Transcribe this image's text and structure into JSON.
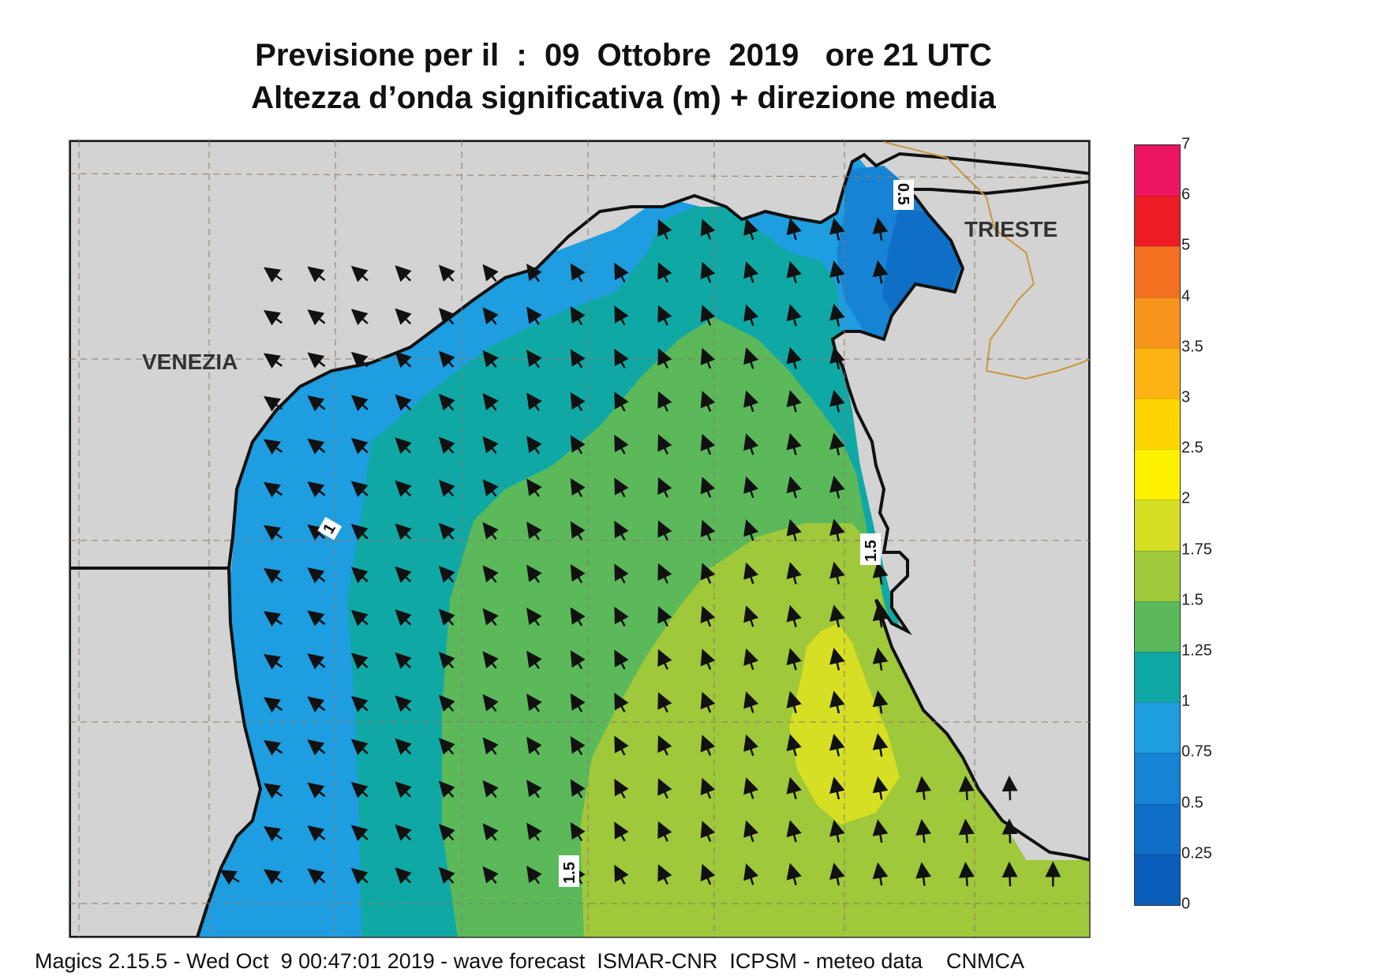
{
  "title": {
    "line1": "Previsione per il  :  09  Ottobre  2019   ore 21 UTC",
    "line2": "Altezza d’onda significativa (m) + direzione media"
  },
  "map": {
    "cities": [
      {
        "name": "VENEZIA"
      },
      {
        "name": "TRIESTE"
      }
    ],
    "contour_labels": [
      "0.5",
      "1",
      "1.5",
      "1.5"
    ],
    "arrow_direction": "north-west to north (toward coast)"
  },
  "legend": {
    "levels": [
      {
        "label": "0",
        "color": "#0a5db8"
      },
      {
        "label": "0.25",
        "color": "#0f6fc6"
      },
      {
        "label": "0.5",
        "color": "#1683d4"
      },
      {
        "label": "0.75",
        "color": "#1e9de0"
      },
      {
        "label": "1",
        "color": "#10a8a4"
      },
      {
        "label": "1.25",
        "color": "#5bb95a"
      },
      {
        "label": "1.5",
        "color": "#9fc83a"
      },
      {
        "label": "1.75",
        "color": "#d6df24"
      },
      {
        "label": "2",
        "color": "#fff200"
      },
      {
        "label": "2.5",
        "color": "#ffd400"
      },
      {
        "label": "3",
        "color": "#fdb515"
      },
      {
        "label": "3.5",
        "color": "#f7941d"
      },
      {
        "label": "4",
        "color": "#f37021"
      },
      {
        "label": "5",
        "color": "#ed1c24"
      },
      {
        "label": "6",
        "color": "#ec1562"
      },
      {
        "label": "7",
        "color": ""
      }
    ]
  },
  "footer": "Magics 2.15.5 - Wed Oct  9 00:47:01 2019 - wave forecast  ISMAR-CNR  ICPSM - meteo data    CNMCA"
}
